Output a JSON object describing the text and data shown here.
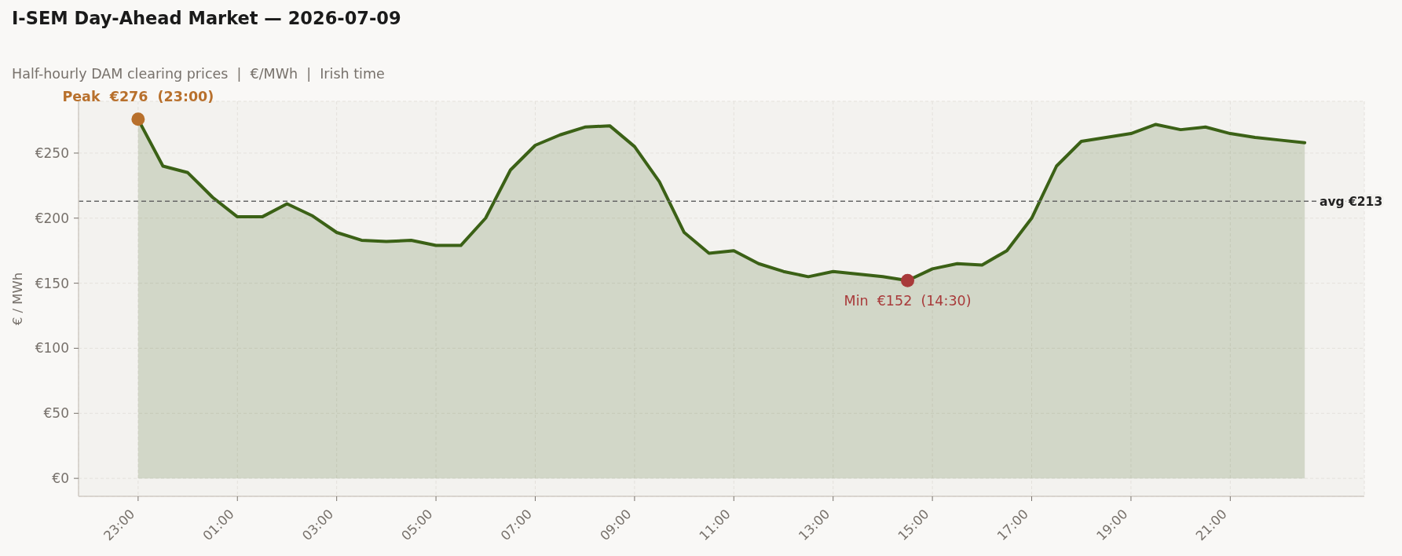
{
  "chart_data": {
    "type": "area",
    "title": "I-SEM Day-Ahead Market — 2026-07-09",
    "subtitle": "Half-hourly DAM clearing prices  |  €/MWh  |  Irish time",
    "ylabel": "€ / MWh",
    "x": [
      "2026-07-08T23:00",
      "2026-07-08T23:30",
      "2026-07-09T00:00",
      "2026-07-09T00:30",
      "2026-07-09T01:00",
      "2026-07-09T01:30",
      "2026-07-09T02:00",
      "2026-07-09T02:30",
      "2026-07-09T03:00",
      "2026-07-09T03:30",
      "2026-07-09T04:00",
      "2026-07-09T04:30",
      "2026-07-09T05:00",
      "2026-07-09T05:30",
      "2026-07-09T06:00",
      "2026-07-09T06:30",
      "2026-07-09T07:00",
      "2026-07-09T07:30",
      "2026-07-09T08:00",
      "2026-07-09T08:30",
      "2026-07-09T09:00",
      "2026-07-09T09:30",
      "2026-07-09T10:00",
      "2026-07-09T10:30",
      "2026-07-09T11:00",
      "2026-07-09T11:30",
      "2026-07-09T12:00",
      "2026-07-09T12:30",
      "2026-07-09T13:00",
      "2026-07-09T13:30",
      "2026-07-09T14:00",
      "2026-07-09T14:30",
      "2026-07-09T15:00",
      "2026-07-09T15:30",
      "2026-07-09T16:00",
      "2026-07-09T16:30",
      "2026-07-09T17:00",
      "2026-07-09T17:30",
      "2026-07-09T18:00",
      "2026-07-09T18:30",
      "2026-07-09T19:00",
      "2026-07-09T19:30",
      "2026-07-09T20:00",
      "2026-07-09T20:30",
      "2026-07-09T21:00",
      "2026-07-09T21:30",
      "2026-07-09T22:00",
      "2026-07-09T22:30"
    ],
    "series": [
      {
        "color": "#3b6116",
        "values": [
          276,
          240,
          235,
          216,
          201,
          201,
          211,
          202,
          189,
          183,
          182,
          183,
          179,
          179,
          200,
          237,
          256,
          264,
          270,
          271,
          255,
          228,
          189,
          173,
          175,
          165,
          159,
          155,
          159,
          157,
          155,
          152,
          161,
          165,
          164,
          175,
          200,
          240,
          259,
          262,
          265,
          272,
          268,
          270,
          265,
          262,
          260,
          258
        ]
      },
      {
        "type": "scatter",
        "color": "#b8702c",
        "x": [
          "2026-07-08T23:00"
        ],
        "values": [
          276
        ]
      },
      {
        "type": "scatter",
        "color": "#a83a3a",
        "x": [
          "2026-07-09T14:30"
        ],
        "values": [
          152
        ]
      }
    ],
    "xlim": [
      "2026-07-08T21:48",
      "2026-07-09T23:42"
    ],
    "xticks": [
      {
        "value": "2026-07-08T23:00",
        "label": "23:00"
      },
      {
        "value": "2026-07-09T01:00",
        "label": "01:00"
      },
      {
        "value": "2026-07-09T03:00",
        "label": "03:00"
      },
      {
        "value": "2026-07-09T05:00",
        "label": "05:00"
      },
      {
        "value": "2026-07-09T07:00",
        "label": "07:00"
      },
      {
        "value": "2026-07-09T09:00",
        "label": "09:00"
      },
      {
        "value": "2026-07-09T11:00",
        "label": "11:00"
      },
      {
        "value": "2026-07-09T13:00",
        "label": "13:00"
      },
      {
        "value": "2026-07-09T15:00",
        "label": "15:00"
      },
      {
        "value": "2026-07-09T17:00",
        "label": "17:00"
      },
      {
        "value": "2026-07-09T19:00",
        "label": "19:00"
      },
      {
        "value": "2026-07-09T21:00",
        "label": "21:00"
      }
    ],
    "ylim": [
      -13.8,
      289.8
    ],
    "yticks": [
      {
        "value": 0,
        "label": "€0"
      },
      {
        "value": 50,
        "label": "€50"
      },
      {
        "value": 100,
        "label": "€100"
      },
      {
        "value": 150,
        "label": "€150"
      },
      {
        "value": 200,
        "label": "€200"
      },
      {
        "value": 250,
        "label": "€250"
      }
    ],
    "grid": true,
    "ref_lines": [
      {
        "axis": "y",
        "value": 213,
        "label": "avg €213",
        "color": "#666666",
        "line_style": "dashed"
      }
    ],
    "annotations": [
      {
        "text": "Peak  €276  (23:00)",
        "x": "2026-07-08T23:00",
        "y": 276
      },
      {
        "text": "Min  €152  (14:30)",
        "x": "2026-07-09T14:30",
        "y": 152
      }
    ]
  }
}
